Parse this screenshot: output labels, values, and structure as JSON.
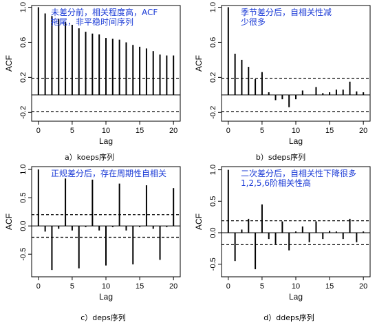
{
  "chart_data": [
    {
      "type": "bar",
      "caption": "a）koeps序列",
      "annotation": [
        "未差分前，相关程度高，ACF",
        "拖尾，非平稳时间序列"
      ],
      "xlabel": "Lag",
      "ylabel": "ACF",
      "xlim": [
        -1,
        21
      ],
      "ylim": [
        -0.3,
        1.02
      ],
      "xticks": [
        "0",
        "5",
        "10",
        "15",
        "20"
      ],
      "yticks": [
        "-0.2",
        "0.2",
        "0.6",
        "1.0"
      ],
      "ytick_values": [
        -0.2,
        0.2,
        0.6,
        1.0
      ],
      "conf_band": 0.19,
      "lags": [
        0,
        1,
        2,
        3,
        4,
        5,
        6,
        7,
        8,
        9,
        10,
        11,
        12,
        13,
        14,
        15,
        16,
        17,
        18,
        19,
        20
      ],
      "values": [
        1.0,
        0.93,
        0.9,
        0.87,
        0.83,
        0.8,
        0.76,
        0.72,
        0.7,
        0.69,
        0.65,
        0.64,
        0.63,
        0.6,
        0.57,
        0.55,
        0.53,
        0.5,
        0.46,
        0.45,
        0.45
      ]
    },
    {
      "type": "bar",
      "caption": "b）sdeps序列",
      "annotation": [
        "季节差分后，自相关性减",
        "少很多"
      ],
      "xlabel": "Lag",
      "ylabel": "ACF",
      "xlim": [
        -1,
        21
      ],
      "ylim": [
        -0.3,
        1.02
      ],
      "xticks": [
        "0",
        "5",
        "10",
        "15",
        "20"
      ],
      "yticks": [
        "-0.2",
        "0.2",
        "0.6",
        "1.0"
      ],
      "ytick_values": [
        -0.2,
        0.2,
        0.6,
        1.0
      ],
      "conf_band": 0.19,
      "lags": [
        0,
        1,
        2,
        3,
        4,
        5,
        6,
        7,
        8,
        9,
        10,
        11,
        12,
        13,
        14,
        15,
        16,
        17,
        18,
        19,
        20
      ],
      "values": [
        1.0,
        0.47,
        0.4,
        0.32,
        0.18,
        0.26,
        0.03,
        -0.06,
        -0.05,
        -0.14,
        -0.05,
        0.05,
        0.0,
        0.09,
        0.02,
        0.03,
        0.06,
        0.06,
        0.15,
        0.04,
        0.03
      ]
    },
    {
      "type": "bar",
      "caption": "c）deps序列",
      "annotation": [
        "正规差分后，存在周期性自相关"
      ],
      "xlabel": "Lag",
      "ylabel": "ACF",
      "xlim": [
        -1,
        21
      ],
      "ylim": [
        -0.9,
        1.05
      ],
      "xticks": [
        "0",
        "5",
        "10",
        "15",
        "20"
      ],
      "yticks": [
        "-0.5",
        "0.0",
        "0.5",
        "1.0"
      ],
      "ytick_values": [
        -0.5,
        0.0,
        0.5,
        1.0
      ],
      "conf_band": 0.2,
      "lags": [
        0,
        1,
        2,
        3,
        4,
        5,
        6,
        7,
        8,
        9,
        10,
        11,
        12,
        13,
        14,
        15,
        16,
        17,
        18,
        19,
        20
      ],
      "values": [
        1.0,
        -0.1,
        -0.78,
        -0.05,
        0.84,
        -0.08,
        -0.75,
        -0.02,
        0.82,
        -0.08,
        -0.7,
        -0.02,
        0.75,
        -0.08,
        -0.68,
        -0.02,
        0.72,
        -0.05,
        -0.6,
        -0.02,
        0.67
      ]
    },
    {
      "type": "bar",
      "caption": "d）ddeps序列",
      "annotation": [
        "二次差分后，自相关性下降很多",
        "1,2,5,6阶相关性高"
      ],
      "xlabel": "Lag",
      "ylabel": "ACF",
      "xlim": [
        -1,
        21
      ],
      "ylim": [
        -0.7,
        1.05
      ],
      "xticks": [
        "0",
        "5",
        "10",
        "15",
        "20"
      ],
      "yticks": [
        "-0.5",
        "0.0",
        "0.5",
        "1.0"
      ],
      "ytick_values": [
        -0.5,
        0.0,
        0.5,
        1.0
      ],
      "conf_band": 0.19,
      "lags": [
        0,
        1,
        2,
        3,
        4,
        5,
        6,
        7,
        8,
        9,
        10,
        11,
        12,
        13,
        14,
        15,
        16,
        17,
        18,
        19,
        20
      ],
      "values": [
        1.0,
        -0.45,
        0.05,
        0.22,
        -0.58,
        0.45,
        -0.1,
        -0.18,
        0.18,
        -0.28,
        0.02,
        0.1,
        -0.15,
        0.18,
        -0.1,
        0.03,
        0.02,
        -0.1,
        0.22,
        -0.15,
        0.02
      ]
    }
  ]
}
